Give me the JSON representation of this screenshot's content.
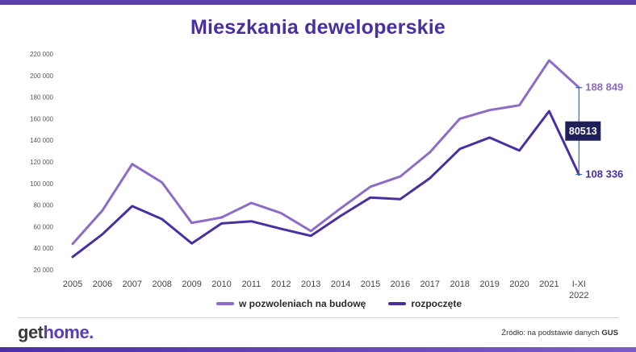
{
  "title": "Mieszkania deweloperskie",
  "colors": {
    "permits": "#8c6cc7",
    "started": "#4a2fa3",
    "title": "#4a2fa3",
    "badge_bg": "#1f1f5a"
  },
  "legend": {
    "permits_label": "w pozwoleniach na budowę",
    "started_label": "rozpoczęte"
  },
  "footer": {
    "logo_part1": "get",
    "logo_part2": "home.",
    "source_prefix": "Źródło: na podstawie danych ",
    "source_name": "GUS"
  },
  "chart_data": {
    "type": "line",
    "categories": [
      "2005",
      "2006",
      "2007",
      "2008",
      "2009",
      "2010",
      "2011",
      "2012",
      "2013",
      "2014",
      "2015",
      "2016",
      "2017",
      "2018",
      "2019",
      "2020",
      "2021",
      "I-XI 2022"
    ],
    "series": [
      {
        "name": "w pozwoleniach na budowę",
        "values": [
          44000,
          75000,
          118000,
          101000,
          63500,
          68500,
          82000,
          72500,
          56000,
          77000,
          97000,
          106500,
          129000,
          160000,
          168000,
          172500,
          214000,
          188849
        ]
      },
      {
        "name": "rozpoczęte",
        "values": [
          32000,
          53000,
          79000,
          67000,
          44500,
          63000,
          65000,
          58000,
          51500,
          70000,
          87000,
          85500,
          105000,
          132000,
          142500,
          130500,
          167000,
          108336
        ]
      }
    ],
    "yticks": [
      "20 000",
      "40 000",
      "60 000",
      "80 000",
      "100 000",
      "120 000",
      "140 000",
      "160 000",
      "180 000",
      "200 000",
      "220 000"
    ],
    "ylim": [
      20000,
      220000
    ],
    "end_labels": [
      "188 849",
      "108 336"
    ],
    "difference_label": "80513"
  }
}
